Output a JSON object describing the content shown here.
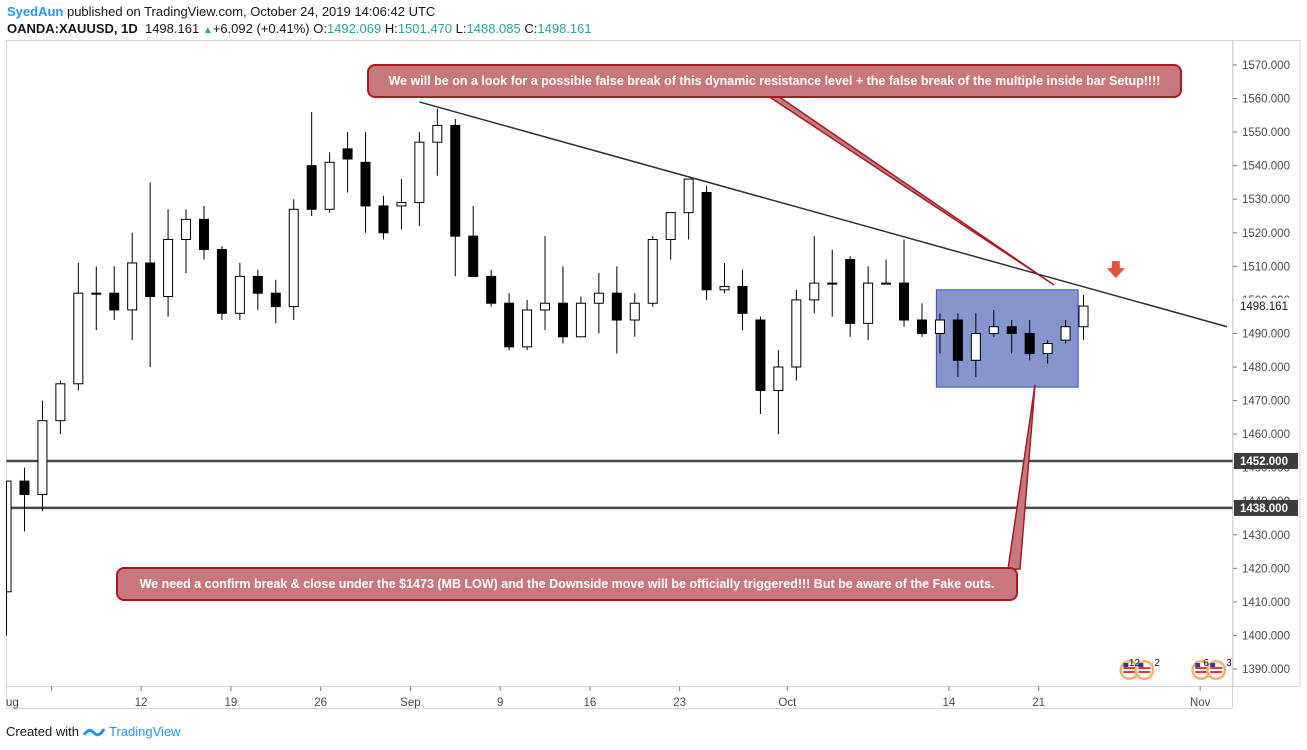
{
  "header": {
    "author": "SyedAun",
    "published_text": "published on TradingView.com, October 24, 2019 14:06:42 UTC",
    "symbol": "OANDA:XAUUSD, 1D",
    "last": "1498.161",
    "change": "+6.092 (+0.41%)",
    "o_label": "O:",
    "o_value": "1492.069",
    "h_label": "H:",
    "h_value": "1501.470",
    "l_label": "L:",
    "l_value": "1488.085",
    "c_label": "C:",
    "c_value": "1498.161"
  },
  "footer": {
    "created_with": "Created with",
    "brand": "TradingView"
  },
  "annotations": {
    "top_note": "We will be on a look for a possible false break of this dynamic resistance level + the false break of the multiple inside bar Setup!!!!",
    "bottom_note": "We need a confirm break & close under the $1473 (MB LOW) and the Downside move will be officially triggered!!! But be aware of the Fake outs."
  },
  "colors": {
    "up_body": "#ffffff",
    "down_body": "#000000",
    "wick": "#000000",
    "box_fill": "#8496cc",
    "box_border": "#3f51b5",
    "trendline": "#2a2e39",
    "level_line": "#4a4a4a",
    "note_fill": "#c8787c",
    "note_border": "#a61c24",
    "arrow": "#e0533c"
  },
  "chart_data": {
    "type": "candlestick",
    "symbol": "OANDA:XAUUSD",
    "timeframe": "1D",
    "ylim": [
      1383,
      1577
    ],
    "y_ticks": [
      1390,
      1400,
      1410,
      1420,
      1430,
      1440,
      1450,
      1460,
      1470,
      1480,
      1490,
      1500,
      1510,
      1520,
      1530,
      1540,
      1550,
      1560,
      1570
    ],
    "x_ticks": [
      {
        "label": "ug",
        "x": 2
      },
      {
        "label": "12",
        "x": 7
      },
      {
        "label": "19",
        "x": 12
      },
      {
        "label": "26",
        "x": 17
      },
      {
        "label": "Sep",
        "x": 22
      },
      {
        "label": "9",
        "x": 27
      },
      {
        "label": "16",
        "x": 32
      },
      {
        "label": "23",
        "x": 37
      },
      {
        "label": "Oct",
        "x": 43
      },
      {
        "label": "14",
        "x": 52
      },
      {
        "label": "21",
        "x": 57
      },
      {
        "label": "Nov",
        "x": 66
      }
    ],
    "price_labels": [
      {
        "value": "1498.161",
        "y": 1498.161,
        "style": "last"
      },
      {
        "value": "1452.000",
        "y": 1452,
        "style": "level"
      },
      {
        "value": "1438.000",
        "y": 1438,
        "style": "level"
      }
    ],
    "candles": [
      {
        "x": -0.5,
        "o": 1413,
        "h": 1446,
        "l": 1400,
        "c": 1446
      },
      {
        "x": 0.5,
        "o": 1446,
        "h": 1450,
        "l": 1431,
        "c": 1442
      },
      {
        "x": 1.5,
        "o": 1442,
        "h": 1470,
        "l": 1437,
        "c": 1464
      },
      {
        "x": 2.5,
        "o": 1464,
        "h": 1476,
        "l": 1460,
        "c": 1475
      },
      {
        "x": 3.5,
        "o": 1475,
        "h": 1511,
        "l": 1473,
        "c": 1502
      },
      {
        "x": 4.5,
        "o": 1502,
        "h": 1510,
        "l": 1491,
        "c": 1502
      },
      {
        "x": 5.5,
        "o": 1502,
        "h": 1510,
        "l": 1494,
        "c": 1497
      },
      {
        "x": 6.5,
        "o": 1497,
        "h": 1520,
        "l": 1488,
        "c": 1511
      },
      {
        "x": 7.5,
        "o": 1511,
        "h": 1535,
        "l": 1480,
        "c": 1501
      },
      {
        "x": 8.5,
        "o": 1501,
        "h": 1527,
        "l": 1495,
        "c": 1518
      },
      {
        "x": 9.5,
        "o": 1518,
        "h": 1527,
        "l": 1508,
        "c": 1524
      },
      {
        "x": 10.5,
        "o": 1524,
        "h": 1528,
        "l": 1512,
        "c": 1515
      },
      {
        "x": 11.5,
        "o": 1515,
        "h": 1516,
        "l": 1494,
        "c": 1496
      },
      {
        "x": 12.5,
        "o": 1496,
        "h": 1511,
        "l": 1494,
        "c": 1507
      },
      {
        "x": 13.5,
        "o": 1507,
        "h": 1509,
        "l": 1497,
        "c": 1502
      },
      {
        "x": 14.5,
        "o": 1502,
        "h": 1506,
        "l": 1493,
        "c": 1498
      },
      {
        "x": 15.5,
        "o": 1498,
        "h": 1530,
        "l": 1494,
        "c": 1527
      },
      {
        "x": 16.5,
        "o": 1540,
        "h": 1556,
        "l": 1525,
        "c": 1527
      },
      {
        "x": 17.5,
        "o": 1527,
        "h": 1544,
        "l": 1526,
        "c": 1541
      },
      {
        "x": 18.5,
        "o": 1545,
        "h": 1550,
        "l": 1532,
        "c": 1542
      },
      {
        "x": 19.5,
        "o": 1541,
        "h": 1550,
        "l": 1520,
        "c": 1528
      },
      {
        "x": 20.5,
        "o": 1528,
        "h": 1531,
        "l": 1518,
        "c": 1520
      },
      {
        "x": 21.5,
        "o": 1528,
        "h": 1536,
        "l": 1521,
        "c": 1529
      },
      {
        "x": 22.5,
        "o": 1529,
        "h": 1550,
        "l": 1522,
        "c": 1547
      },
      {
        "x": 23.5,
        "o": 1547,
        "h": 1557,
        "l": 1537,
        "c": 1552
      },
      {
        "x": 24.5,
        "o": 1552,
        "h": 1554,
        "l": 1507,
        "c": 1519
      },
      {
        "x": 25.5,
        "o": 1519,
        "h": 1528,
        "l": 1507,
        "c": 1507
      },
      {
        "x": 26.5,
        "o": 1507,
        "h": 1509,
        "l": 1498,
        "c": 1499
      },
      {
        "x": 27.5,
        "o": 1499,
        "h": 1502,
        "l": 1485,
        "c": 1486
      },
      {
        "x": 28.5,
        "o": 1486,
        "h": 1500,
        "l": 1485,
        "c": 1497
      },
      {
        "x": 29.5,
        "o": 1497,
        "h": 1519,
        "l": 1491,
        "c": 1499
      },
      {
        "x": 30.5,
        "o": 1499,
        "h": 1510,
        "l": 1487,
        "c": 1489
      },
      {
        "x": 31.5,
        "o": 1489,
        "h": 1501,
        "l": 1489,
        "c": 1499
      },
      {
        "x": 32.5,
        "o": 1499,
        "h": 1508,
        "l": 1490,
        "c": 1502
      },
      {
        "x": 33.5,
        "o": 1502,
        "h": 1510,
        "l": 1484,
        "c": 1494
      },
      {
        "x": 34.5,
        "o": 1494,
        "h": 1502,
        "l": 1489,
        "c": 1499
      },
      {
        "x": 35.5,
        "o": 1499,
        "h": 1519,
        "l": 1498,
        "c": 1518
      },
      {
        "x": 36.5,
        "o": 1518,
        "h": 1526,
        "l": 1512,
        "c": 1526
      },
      {
        "x": 37.5,
        "o": 1526,
        "h": 1536,
        "l": 1518,
        "c": 1536
      },
      {
        "x": 38.5,
        "o": 1532,
        "h": 1534,
        "l": 1500,
        "c": 1503
      },
      {
        "x": 39.5,
        "o": 1503,
        "h": 1511,
        "l": 1502,
        "c": 1504
      },
      {
        "x": 40.5,
        "o": 1504,
        "h": 1509,
        "l": 1491,
        "c": 1496
      },
      {
        "x": 41.5,
        "o": 1494,
        "h": 1495,
        "l": 1466,
        "c": 1473
      },
      {
        "x": 42.5,
        "o": 1473,
        "h": 1485,
        "l": 1460,
        "c": 1480
      },
      {
        "x": 43.5,
        "o": 1480,
        "h": 1503,
        "l": 1476,
        "c": 1500
      },
      {
        "x": 44.5,
        "o": 1500,
        "h": 1519,
        "l": 1496,
        "c": 1505
      },
      {
        "x": 45.5,
        "o": 1505,
        "h": 1515,
        "l": 1495,
        "c": 1505
      },
      {
        "x": 46.5,
        "o": 1512,
        "h": 1513,
        "l": 1489,
        "c": 1493
      },
      {
        "x": 47.5,
        "o": 1493,
        "h": 1510,
        "l": 1488,
        "c": 1505
      },
      {
        "x": 48.5,
        "o": 1505,
        "h": 1512,
        "l": 1505,
        "c": 1505
      },
      {
        "x": 49.5,
        "o": 1505,
        "h": 1518,
        "l": 1492,
        "c": 1494
      },
      {
        "x": 50.5,
        "o": 1494,
        "h": 1499,
        "l": 1489,
        "c": 1490
      },
      {
        "x": 51.5,
        "o": 1490,
        "h": 1496,
        "l": 1484,
        "c": 1494
      },
      {
        "x": 52.5,
        "o": 1494,
        "h": 1496,
        "l": 1477,
        "c": 1482
      },
      {
        "x": 53.5,
        "o": 1482,
        "h": 1496,
        "l": 1477,
        "c": 1490
      },
      {
        "x": 54.5,
        "o": 1490,
        "h": 1497,
        "l": 1489,
        "c": 1492
      },
      {
        "x": 55.5,
        "o": 1492,
        "h": 1494,
        "l": 1484,
        "c": 1490
      },
      {
        "x": 56.5,
        "o": 1490,
        "h": 1494,
        "l": 1482,
        "c": 1484
      },
      {
        "x": 57.5,
        "o": 1484,
        "h": 1488,
        "l": 1481,
        "c": 1487
      },
      {
        "x": 58.5,
        "o": 1488,
        "h": 1494,
        "l": 1487,
        "c": 1492
      },
      {
        "x": 59.5,
        "o": 1492,
        "h": 1501.47,
        "l": 1488.085,
        "c": 1498.161
      }
    ],
    "horizontal_levels": [
      1452,
      1438
    ],
    "trendline": [
      {
        "x": 22.5,
        "y": 1559
      },
      {
        "x": 67.5,
        "y": 1492
      }
    ],
    "box": {
      "x0": 51.3,
      "x1": 59.2,
      "y0": 1474,
      "y1": 1503
    },
    "arrow": {
      "x": 61.3,
      "y": 1506.5
    },
    "events": [
      {
        "x": 62.5,
        "label": "12",
        "sub": "2"
      },
      {
        "x": 66.5,
        "label": "6",
        "sub": "3"
      }
    ]
  }
}
